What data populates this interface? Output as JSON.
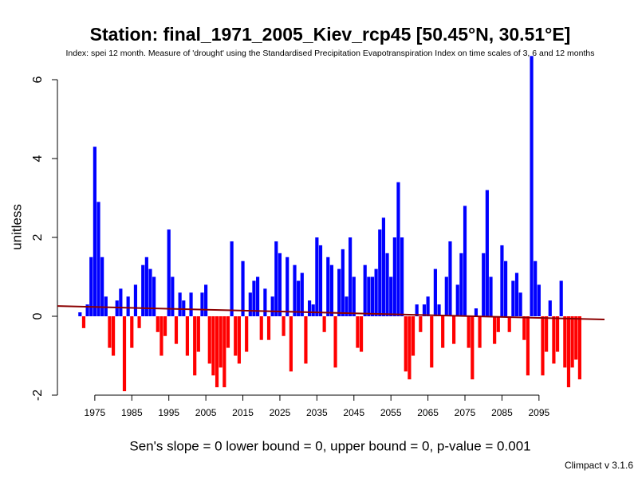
{
  "chart_data": {
    "type": "bar",
    "title": "Station: final_1971_2005_Kiev_rcp45 [50.45°N, 30.51°E]",
    "subtitle": "Index: spei 12 month. Measure of 'drought' using the Standardised Precipitation Evapotranspiration Index on time scales of 3, 6 and 12 months",
    "ylabel": "unitless",
    "footer": "Sen's slope = 0   lower bound = 0,   upper bound = 0,   p-value = 0.001",
    "credit": "Climpact v 3.1.6",
    "x": [
      1971,
      1972,
      1973,
      1974,
      1975,
      1976,
      1977,
      1978,
      1979,
      1980,
      1981,
      1982,
      1983,
      1984,
      1985,
      1986,
      1987,
      1988,
      1989,
      1990,
      1991,
      1992,
      1993,
      1994,
      1995,
      1996,
      1997,
      1998,
      1999,
      2000,
      2001,
      2002,
      2003,
      2004,
      2005,
      2006,
      2007,
      2008,
      2009,
      2010,
      2011,
      2012,
      2013,
      2014,
      2015,
      2016,
      2017,
      2018,
      2019,
      2020,
      2021,
      2022,
      2023,
      2024,
      2025,
      2026,
      2027,
      2028,
      2029,
      2030,
      2031,
      2032,
      2033,
      2034,
      2035,
      2036,
      2037,
      2038,
      2039,
      2040,
      2041,
      2042,
      2043,
      2044,
      2045,
      2046,
      2047,
      2048,
      2049,
      2050,
      2051,
      2052,
      2053,
      2054,
      2055,
      2056,
      2057,
      2058,
      2059,
      2060,
      2061,
      2062,
      2063,
      2064,
      2065,
      2066,
      2067,
      2068,
      2069,
      2070,
      2071,
      2072,
      2073,
      2074,
      2075,
      2076,
      2077,
      2078,
      2079,
      2080,
      2081,
      2082,
      2083,
      2084,
      2085,
      2086,
      2087,
      2088,
      2089,
      2090,
      2091,
      2092,
      2093,
      2094,
      2095,
      2096,
      2097,
      2098,
      2099,
      2100,
      2101,
      2102,
      2103,
      2104,
      2105,
      2106
    ],
    "values": [
      0.1,
      -0.3,
      0.3,
      1.5,
      4.3,
      2.9,
      1.5,
      0.5,
      -0.8,
      -1.0,
      0.4,
      0.7,
      -1.9,
      0.5,
      -0.8,
      0.8,
      -0.3,
      1.3,
      1.5,
      1.2,
      1.0,
      -0.4,
      -1.0,
      -0.5,
      2.2,
      1.0,
      -0.7,
      0.6,
      0.4,
      -1.0,
      0.6,
      -1.5,
      -0.9,
      0.6,
      0.8,
      -1.2,
      -1.5,
      -1.8,
      -1.3,
      -1.8,
      -0.8,
      1.9,
      -1.0,
      -1.2,
      1.4,
      -0.9,
      0.6,
      0.9,
      1.0,
      -0.6,
      0.7,
      -0.6,
      0.5,
      1.9,
      1.6,
      -0.5,
      1.5,
      -1.4,
      1.3,
      0.9,
      1.1,
      -1.2,
      0.4,
      0.3,
      2.0,
      1.8,
      -0.4,
      1.5,
      1.3,
      -1.3,
      1.2,
      1.7,
      0.5,
      2.0,
      1.0,
      -0.8,
      -0.9,
      1.3,
      1.0,
      1.0,
      1.2,
      2.2,
      2.5,
      1.6,
      1.0,
      2.0,
      3.4,
      2.0,
      -1.4,
      -1.6,
      -1.0,
      0.3,
      -0.4,
      0.3,
      0.5,
      -1.3,
      1.2,
      0.3,
      -0.8,
      1.0,
      1.9,
      -0.7,
      0.8,
      1.6,
      2.8,
      -0.8,
      -1.6,
      0.2,
      -0.8,
      1.6,
      3.2,
      1.0,
      -0.7,
      -0.4,
      1.8,
      1.4,
      -0.4,
      0.9,
      1.1,
      0.6,
      -0.6,
      -1.5,
      6.6,
      1.4,
      0.8,
      -1.5,
      -0.9,
      0.4,
      -1.2,
      -0.9,
      0.9,
      -1.3,
      -1.8,
      -1.3,
      -1.1,
      -1.6
    ],
    "positive_color": "#0000ff",
    "negative_color": "#ff0000",
    "trend": {
      "x": [
        1964.9,
        2112.7
      ],
      "y": [
        0.26,
        -0.08
      ],
      "color": "#8b0000"
    },
    "xlim": [
      1964.9,
      2112.7
    ],
    "ylim": [
      -2.2,
      6.6
    ],
    "xticks": [
      1975,
      1985,
      1995,
      2005,
      2015,
      2025,
      2035,
      2045,
      2055,
      2065,
      2075,
      2085,
      2095
    ],
    "yticks": [
      -2,
      0,
      2,
      4,
      6
    ]
  }
}
